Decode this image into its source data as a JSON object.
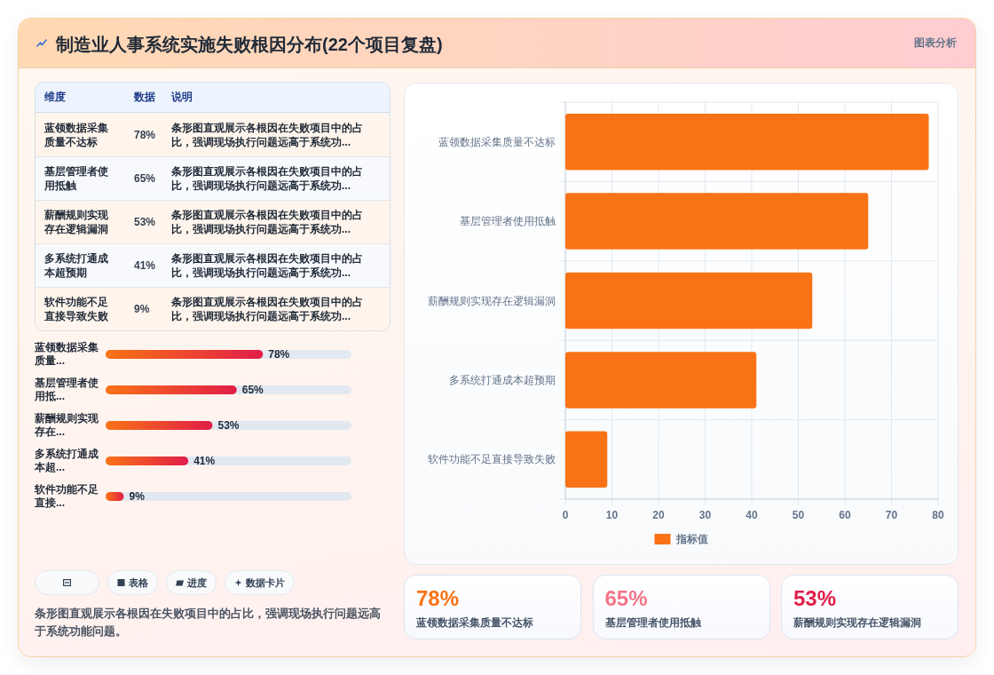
{
  "chart_data": [
    {
      "type": "other",
      "annotations": [
        "维度",
        "数据",
        "说明",
        "蓝领数据采集质量不达标",
        "78%",
        "条形图直观展示各根因在失败项目中的占比，强调现场执行问题远高于系统功...",
        "基层管理者使用抵触",
        "65%",
        "条形图直观展示各根因在失败项目中的占比，强调现场执行问题远高于系统功...",
        "薪酬规则实现存在逻辑漏洞",
        "53%",
        "条形图直观展示各根因在失败项目中的占比，强调现场执行问题远高于系统功...",
        "多系统打通成本超预期",
        "41%",
        "条形图直观展示各根因在失败项目中的占比，强调现场执行问题远高于系统功...",
        "软件功能不足直接导致失败",
        "9%",
        "条形图直观展示各根因在失败项目中的占比，强调现场执行问题远高于系统功..."
      ]
    },
    {
      "type": "bar",
      "orientation": "horizontal",
      "categories": [
        "蓝领数据采集质量...",
        "基层管理者使用抵...",
        "薪酬规则实现存在...",
        "多系统打通成本超...",
        "软件功能不足直接..."
      ],
      "values": [
        78,
        65,
        53,
        41,
        9
      ],
      "value_labels": [
        "78%",
        "65%",
        "53%",
        "41%",
        "9%"
      ],
      "color": "#e11d48",
      "tick_labels": "y"
    },
    {
      "type": "bar",
      "orientation": "horizontal",
      "title": "制造业人事系统实施失败根因分布(22个项目复盘)",
      "categories": [
        "蓝领数据采集质量不达标",
        "基层管理者使用抵触",
        "薪酬规则实现存在逻辑漏洞",
        "多系统打通成本超预期",
        "软件功能不足直接导致失败"
      ],
      "series": [
        {
          "name": "指标值",
          "color": "#f97316",
          "values": [
            78,
            65,
            53,
            41,
            9
          ]
        }
      ],
      "xlim": [
        0,
        80
      ],
      "xticks": [
        0,
        10,
        20,
        30,
        40,
        50,
        60,
        70,
        80
      ],
      "grid": true,
      "legend": "bottom",
      "annotations": [
        "图表分析",
        "表格",
        "进度",
        "数据卡片",
        "条形图直观展示各根因在失败项目中的占比，强调现场执行问题远高于系统功能问题。"
      ]
    },
    {
      "type": "other",
      "annotations": [
        "78%",
        "蓝领数据采集质量不达标",
        "65%",
        "基层管理者使用抵触",
        "53%",
        "薪酬规则实现存在逻辑漏洞"
      ]
    }
  ]
}
